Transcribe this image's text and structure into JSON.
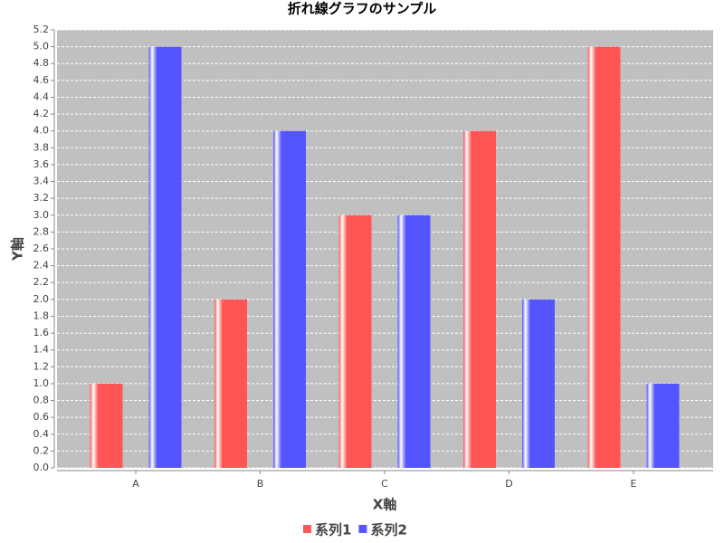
{
  "chart_data": {
    "type": "bar",
    "title": "折れ線グラフのサンプル",
    "x_label": "X軸",
    "y_label": "Y軸",
    "categories": [
      "A",
      "B",
      "C",
      "D",
      "E"
    ],
    "series": [
      {
        "name": "系列1",
        "color": "#ff5555",
        "values": [
          1,
          2,
          3,
          4,
          5
        ]
      },
      {
        "name": "系列2",
        "color": "#5555ff",
        "values": [
          5,
          4,
          3,
          2,
          1
        ]
      }
    ],
    "ylim": [
      0,
      5.2
    ],
    "yticks": [
      {
        "value": 0,
        "label": "0.0"
      },
      0.2,
      0.4,
      0.6,
      0.8,
      {
        "value": 1,
        "label": "1.0"
      },
      1.2,
      1.4,
      1.6,
      1.8,
      {
        "value": 2,
        "label": "2.0"
      },
      2.2,
      2.4,
      2.6,
      2.8,
      {
        "value": 3,
        "label": "3.0"
      },
      3.2,
      3.4,
      3.6,
      3.8,
      {
        "value": 4,
        "label": "4.0"
      },
      4.2,
      4.4,
      4.6,
      4.8,
      {
        "value": 5,
        "label": "5.0"
      },
      5.2
    ],
    "grid": true,
    "legend": "bottom"
  }
}
